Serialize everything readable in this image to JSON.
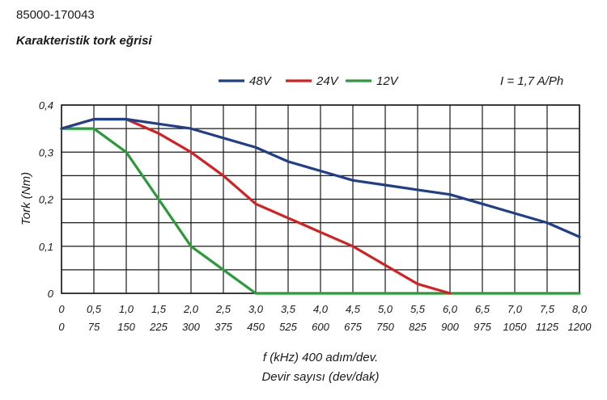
{
  "header": {
    "code": "85000-170043",
    "title": "Karakteristik tork eğrisi"
  },
  "chart_data": {
    "type": "line",
    "title": "Karakteristik tork eğrisi",
    "annotation": "I = 1,7 A/Ph",
    "ylabel": "Tork (Nm)",
    "xlabel_lines": [
      "f (kHz) 400 adım/dev.",
      "Devir sayısı (dev/dak)"
    ],
    "xlim": [
      0,
      8
    ],
    "ylim": [
      0,
      0.4
    ],
    "grid": true,
    "legend_position": "top",
    "x_ticks": [
      "0",
      "0,5",
      "1,0",
      "1,5",
      "2,0",
      "2,5",
      "3,0",
      "3,5",
      "4,0",
      "4,5",
      "5,0",
      "5,5",
      "6,0",
      "6,5",
      "7,0",
      "7,5",
      "8,0"
    ],
    "x_ticks_secondary": [
      "0",
      "75",
      "150",
      "225",
      "300",
      "375",
      "450",
      "525",
      "600",
      "675",
      "750",
      "825",
      "900",
      "975",
      "1050",
      "1125",
      "1200"
    ],
    "y_ticks": [
      "0",
      "0,1",
      "0,2",
      "0,3",
      "0,4"
    ],
    "series": [
      {
        "name": "48V",
        "color": "#1f3f8a",
        "x": [
          0,
          0.5,
          1.0,
          1.5,
          2.0,
          2.5,
          3.0,
          3.5,
          4.0,
          4.5,
          5.0,
          5.5,
          6.0,
          6.5,
          7.0,
          7.5,
          8.0
        ],
        "y": [
          0.35,
          0.37,
          0.37,
          0.36,
          0.35,
          0.33,
          0.31,
          0.28,
          0.26,
          0.24,
          0.23,
          0.22,
          0.21,
          0.19,
          0.17,
          0.15,
          0.12
        ]
      },
      {
        "name": "24V",
        "color": "#d42020",
        "x": [
          0,
          0.5,
          1.0,
          1.5,
          2.0,
          2.5,
          3.0,
          3.5,
          4.0,
          4.5,
          5.0,
          5.5,
          6.0
        ],
        "y": [
          0.35,
          0.37,
          0.37,
          0.34,
          0.3,
          0.25,
          0.19,
          0.16,
          0.13,
          0.1,
          0.06,
          0.02,
          0.0
        ]
      },
      {
        "name": "12V",
        "color": "#2a9a3a",
        "x": [
          0,
          0.5,
          1.0,
          1.5,
          2.0,
          2.5,
          3.0,
          8.0
        ],
        "y": [
          0.35,
          0.35,
          0.3,
          0.2,
          0.1,
          0.05,
          0.0,
          0.0
        ]
      }
    ]
  }
}
